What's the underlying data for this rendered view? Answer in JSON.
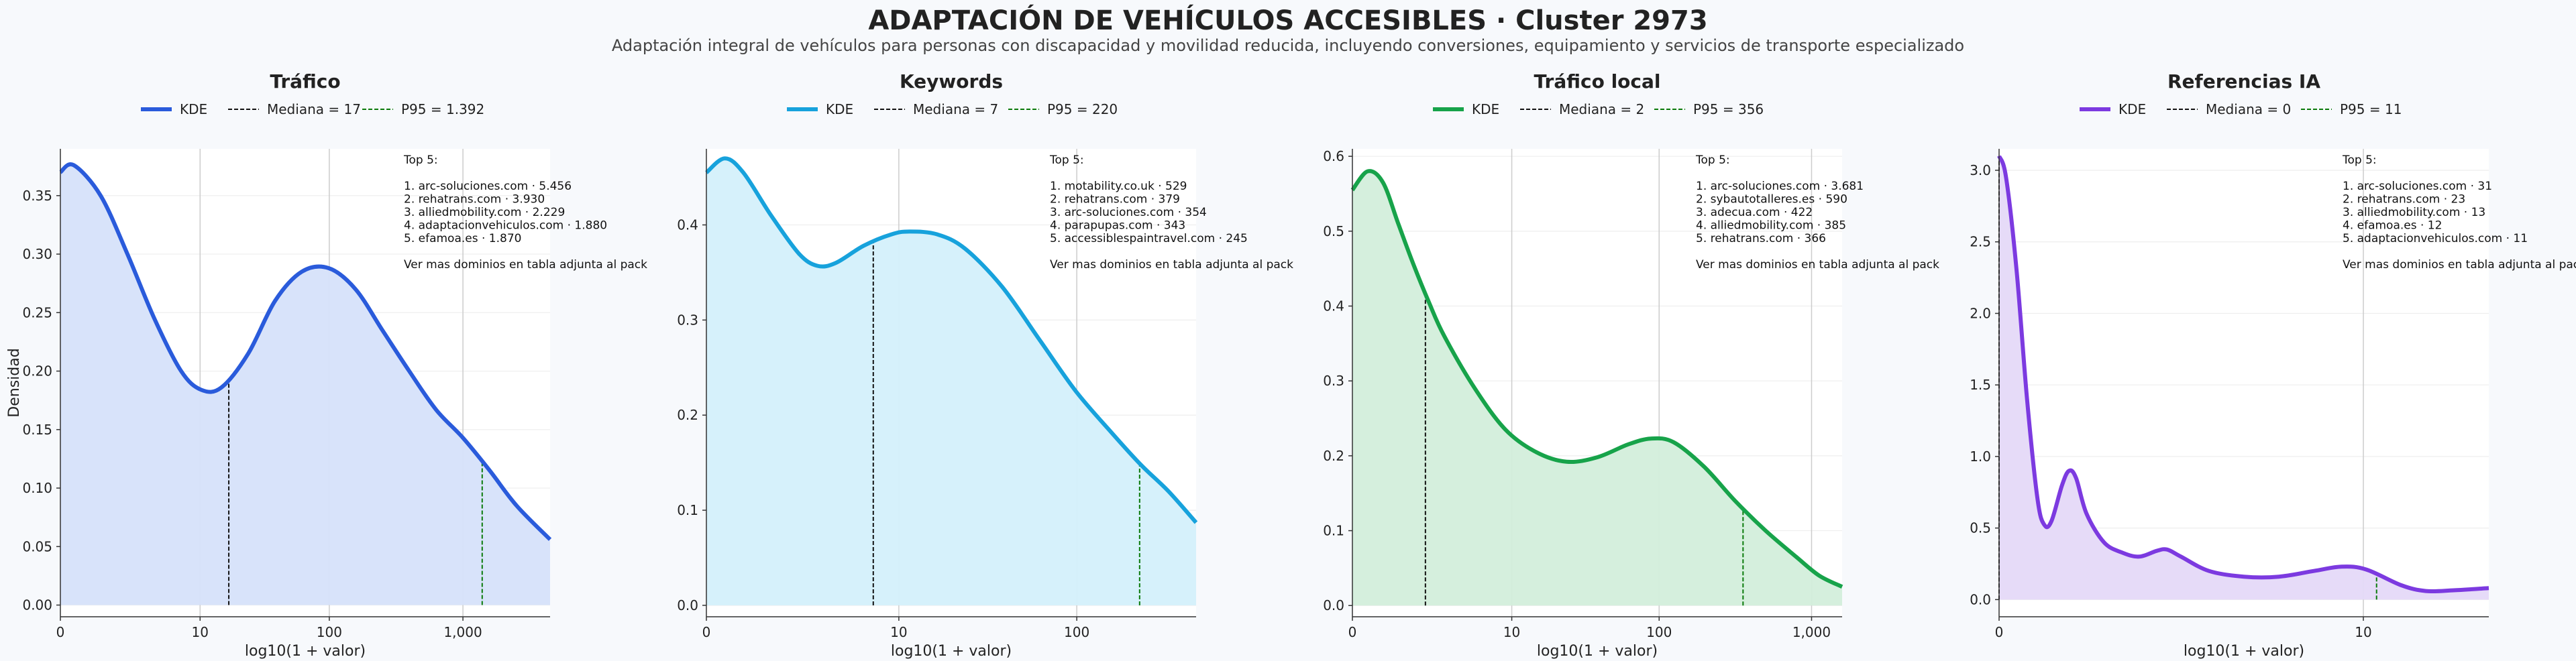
{
  "figure": {
    "title": "ADAPTACIÓN DE VEHÍCULOS ACCESIBLES · Cluster 2973",
    "subtitle": "Adaptación integral de vehículos para personas con discapacidad y movilidad reducida, incluyendo conversiones, equipamiento y servicios de transporte especializado"
  },
  "chart_data": [
    {
      "type": "area",
      "title": "Tráfico",
      "xlabel": "log10(1 + valor)",
      "ylabel": "Densidad",
      "x_scale": "log10(1+x)",
      "xlim": [
        0,
        3.65
      ],
      "ylim": [
        -0.01,
        0.39
      ],
      "xticks": [
        0,
        10,
        100,
        1000
      ],
      "xtick_labels": [
        "0",
        "10",
        "100",
        "1,000"
      ],
      "yticks": [
        0,
        0.05,
        0.1,
        0.15,
        0.2,
        0.25,
        0.3,
        0.35
      ],
      "ytick_labels": [
        "0.00",
        "0.05",
        "0.10",
        "0.15",
        "0.20",
        "0.25",
        "0.30",
        "0.35"
      ],
      "color": "#2a5bdb",
      "fill": "#d6e1fa",
      "legend": [
        "KDE",
        "Mediana = 17",
        "P95 = 1.392"
      ],
      "median": 17,
      "p95": 1392,
      "kde": [
        [
          0,
          0.37
        ],
        [
          0.1,
          0.376
        ],
        [
          0.3,
          0.35
        ],
        [
          0.5,
          0.3
        ],
        [
          0.7,
          0.245
        ],
        [
          0.9,
          0.2
        ],
        [
          1.05,
          0.184
        ],
        [
          1.2,
          0.186
        ],
        [
          1.4,
          0.215
        ],
        [
          1.6,
          0.26
        ],
        [
          1.8,
          0.285
        ],
        [
          2.0,
          0.288
        ],
        [
          2.2,
          0.27
        ],
        [
          2.4,
          0.235
        ],
        [
          2.6,
          0.2
        ],
        [
          2.8,
          0.167
        ],
        [
          3.0,
          0.143
        ],
        [
          3.2,
          0.115
        ],
        [
          3.4,
          0.085
        ],
        [
          3.65,
          0.056
        ]
      ],
      "annotation": [
        "Top 5:",
        "",
        "1. arc-soluciones.com · 5.456",
        "2. rehatrans.com · 3.930",
        "3. alliedmobility.com · 2.229",
        "4. adaptacionvehiculos.com · 1.880",
        "5. efamoa.es · 1.870",
        "",
        "Ver mas dominios en tabla adjunta al pack"
      ]
    },
    {
      "type": "area",
      "title": "Keywords",
      "xlabel": "log10(1 + valor)",
      "x_scale": "log10(1+x)",
      "xlim": [
        0,
        2.65
      ],
      "ylim": [
        -0.012,
        0.48
      ],
      "xticks": [
        0,
        10,
        100
      ],
      "xtick_labels": [
        "0",
        "10",
        "100"
      ],
      "yticks": [
        0,
        0.1,
        0.2,
        0.3,
        0.4
      ],
      "ytick_labels": [
        "0.0",
        "0.1",
        "0.2",
        "0.3",
        "0.4"
      ],
      "color": "#17a2dc",
      "fill": "#d4f0fb",
      "legend": [
        "KDE",
        "Mediana = 7",
        "P95 = 220"
      ],
      "median": 7,
      "p95": 220,
      "kde": [
        [
          0,
          0.455
        ],
        [
          0.1,
          0.47
        ],
        [
          0.2,
          0.455
        ],
        [
          0.35,
          0.41
        ],
        [
          0.5,
          0.37
        ],
        [
          0.6,
          0.357
        ],
        [
          0.7,
          0.36
        ],
        [
          0.85,
          0.378
        ],
        [
          1.0,
          0.39
        ],
        [
          1.1,
          0.393
        ],
        [
          1.25,
          0.39
        ],
        [
          1.4,
          0.375
        ],
        [
          1.6,
          0.335
        ],
        [
          1.8,
          0.28
        ],
        [
          2.0,
          0.225
        ],
        [
          2.2,
          0.18
        ],
        [
          2.35,
          0.148
        ],
        [
          2.5,
          0.12
        ],
        [
          2.65,
          0.087
        ]
      ],
      "annotation": [
        "Top 5:",
        "",
        "1. motability.co.uk · 529",
        "2. rehatrans.com · 379",
        "3. arc-soluciones.com · 354",
        "4. parapupas.com · 343",
        "5. accessiblespaintravel.com · 245",
        "",
        "Ver mas dominios en tabla adjunta al pack"
      ]
    },
    {
      "type": "area",
      "title": "Tráfico local",
      "xlabel": "log10(1 + valor)",
      "x_scale": "log10(1+x)",
      "xlim": [
        0,
        3.2
      ],
      "ylim": [
        -0.015,
        0.61
      ],
      "xticks": [
        0,
        10,
        100,
        1000
      ],
      "xtick_labels": [
        "0",
        "10",
        "100",
        "1,000"
      ],
      "yticks": [
        0,
        0.1,
        0.2,
        0.3,
        0.4,
        0.5,
        0.6
      ],
      "ytick_labels": [
        "0.0",
        "0.1",
        "0.2",
        "0.3",
        "0.4",
        "0.5",
        "0.6"
      ],
      "color": "#17a34a",
      "fill": "#d3eedb",
      "legend": [
        "KDE",
        "Mediana = 2",
        "P95 = 356"
      ],
      "median": 2,
      "p95": 356,
      "kde": [
        [
          0,
          0.555
        ],
        [
          0.1,
          0.58
        ],
        [
          0.2,
          0.565
        ],
        [
          0.3,
          0.51
        ],
        [
          0.4,
          0.455
        ],
        [
          0.5,
          0.405
        ],
        [
          0.6,
          0.36
        ],
        [
          0.8,
          0.29
        ],
        [
          1.0,
          0.235
        ],
        [
          1.2,
          0.205
        ],
        [
          1.4,
          0.192
        ],
        [
          1.6,
          0.198
        ],
        [
          1.8,
          0.215
        ],
        [
          1.95,
          0.223
        ],
        [
          2.1,
          0.218
        ],
        [
          2.3,
          0.185
        ],
        [
          2.5,
          0.14
        ],
        [
          2.7,
          0.1
        ],
        [
          2.9,
          0.065
        ],
        [
          3.05,
          0.04
        ],
        [
          3.2,
          0.025
        ]
      ],
      "annotation": [
        "Top 5:",
        "",
        "1. arc-soluciones.com · 3.681",
        "2. sybautotalleres.es · 590",
        "3. adecua.com · 422",
        "4. alliedmobility.com · 385",
        "5. rehatrans.com · 366",
        "",
        "Ver mas dominios en tabla adjunta al pack"
      ]
    },
    {
      "type": "area",
      "title": "Referencias IA",
      "xlabel": "log10(1 + valor)",
      "x_scale": "log10(1+x)",
      "xlim": [
        0,
        1.4
      ],
      "ylim": [
        -0.12,
        3.15
      ],
      "xticks": [
        0,
        10
      ],
      "xtick_labels": [
        "0",
        "10"
      ],
      "yticks": [
        0,
        0.5,
        1.0,
        1.5,
        2.0,
        2.5,
        3.0
      ],
      "ytick_labels": [
        "0.0",
        "0.5",
        "1.0",
        "1.5",
        "2.0",
        "2.5",
        "3.0"
      ],
      "color": "#7c3ae0",
      "fill": "#e5d9f8",
      "legend": [
        "KDE",
        "Mediana = 0",
        "P95 = 11"
      ],
      "median": 0,
      "p95": 11,
      "kde": [
        [
          0,
          3.1
        ],
        [
          0.02,
          2.95
        ],
        [
          0.05,
          2.3
        ],
        [
          0.08,
          1.4
        ],
        [
          0.11,
          0.7
        ],
        [
          0.13,
          0.52
        ],
        [
          0.15,
          0.55
        ],
        [
          0.18,
          0.8
        ],
        [
          0.2,
          0.9
        ],
        [
          0.22,
          0.85
        ],
        [
          0.25,
          0.6
        ],
        [
          0.3,
          0.4
        ],
        [
          0.35,
          0.33
        ],
        [
          0.4,
          0.3
        ],
        [
          0.45,
          0.34
        ],
        [
          0.48,
          0.35
        ],
        [
          0.52,
          0.3
        ],
        [
          0.6,
          0.2
        ],
        [
          0.7,
          0.16
        ],
        [
          0.8,
          0.16
        ],
        [
          0.9,
          0.2
        ],
        [
          0.98,
          0.23
        ],
        [
          1.05,
          0.21
        ],
        [
          1.15,
          0.1
        ],
        [
          1.22,
          0.06
        ],
        [
          1.3,
          0.065
        ],
        [
          1.4,
          0.08
        ]
      ],
      "annotation": [
        "Top 5:",
        "",
        "1. arc-soluciones.com · 31",
        "2. rehatrans.com · 23",
        "3. alliedmobility.com · 13",
        "4. efamoa.es · 12",
        "5. adaptacionvehiculos.com · 11",
        "",
        "Ver mas dominios en tabla adjunta al pack"
      ]
    }
  ]
}
